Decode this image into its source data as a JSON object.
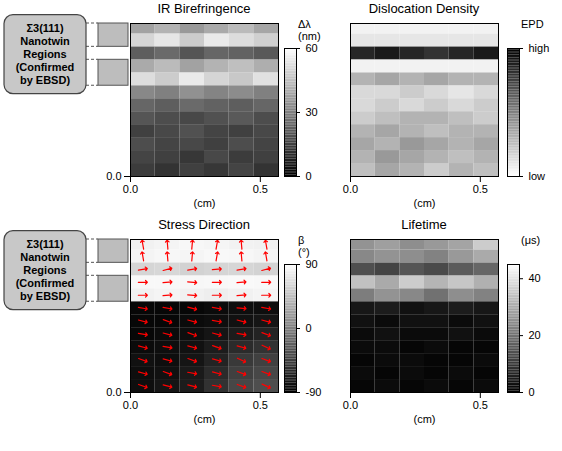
{
  "chart_data": [
    {
      "type": "heatmap",
      "title": "IR Birefringence",
      "x_label": "(cm)",
      "xlim": [
        0,
        0.57
      ],
      "xticks": [
        {
          "value": 0,
          "label": "0.0"
        },
        0.5
      ],
      "ylim": [
        0,
        0.59
      ],
      "yticks": [
        {
          "value": 0,
          "label": "0.0"
        }
      ],
      "annotations": [
        {
          "text": "Σ3(111) Nanotwin Regions (Confirmed by EBSD)",
          "y_ranges": [
            [
              0.5,
              0.59
            ],
            [
              0.35,
              0.45
            ]
          ]
        }
      ],
      "colorbar": {
        "label": "Δλ (nm)",
        "range": [
          0,
          60
        ],
        "ticks": [
          0,
          30,
          60
        ],
        "colors": [
          "#000000",
          "#ffffff"
        ]
      },
      "cells": {
        "x_edges": [
          0,
          0.095,
          0.19,
          0.285,
          0.38,
          0.475,
          0.57
        ],
        "y_edges": [
          0,
          0.05,
          0.1,
          0.15,
          0.2,
          0.25,
          0.3,
          0.35,
          0.4,
          0.45,
          0.5,
          0.55,
          0.59
        ],
        "values": [
          [
            14,
            12,
            15,
            13,
            16,
            12
          ],
          [
            16,
            15,
            13,
            17,
            14,
            15
          ],
          [
            18,
            16,
            17,
            15,
            18,
            16
          ],
          [
            15,
            17,
            19,
            16,
            15,
            17
          ],
          [
            20,
            18,
            17,
            19,
            21,
            18
          ],
          [
            24,
            22,
            25,
            23,
            22,
            24
          ],
          [
            32,
            30,
            34,
            31,
            33,
            30
          ],
          [
            52,
            48,
            55,
            50,
            47,
            53
          ],
          [
            40,
            44,
            38,
            42,
            45,
            41
          ],
          [
            22,
            25,
            20,
            24,
            23,
            21
          ],
          [
            50,
            54,
            48,
            55,
            52,
            49
          ],
          [
            38,
            42,
            36,
            40,
            44,
            39
          ]
        ]
      }
    },
    {
      "type": "heatmap",
      "title": "Dislocation Density",
      "x_label": "(cm)",
      "xlim": [
        0,
        0.57
      ],
      "xticks": [
        {
          "value": 0,
          "label": "0.0"
        },
        0.5
      ],
      "ylim": [
        0,
        0.59
      ],
      "tick_labels": "x",
      "colorbar": {
        "label": "EPD",
        "range": [
          0,
          1
        ],
        "ticks": [
          {
            "value": 0,
            "label": "low"
          },
          {
            "value": 1,
            "label": "high"
          }
        ],
        "colors": [
          "#ffffff",
          "#000000"
        ]
      },
      "cells": {
        "x_edges": [
          0,
          0.095,
          0.19,
          0.285,
          0.38,
          0.475,
          0.57
        ],
        "y_edges": [
          0,
          0.05,
          0.1,
          0.15,
          0.2,
          0.25,
          0.3,
          0.35,
          0.4,
          0.45,
          0.5,
          0.55,
          0.59
        ],
        "values": [
          [
            0.25,
            0.35,
            0.3,
            0.2,
            0.3,
            0.25
          ],
          [
            0.3,
            0.4,
            0.35,
            0.3,
            0.25,
            0.3
          ],
          [
            0.35,
            0.3,
            0.4,
            0.35,
            0.3,
            0.35
          ],
          [
            0.3,
            0.35,
            0.3,
            0.25,
            0.3,
            0.3
          ],
          [
            0.2,
            0.25,
            0.3,
            0.3,
            0.25,
            0.2
          ],
          [
            0.15,
            0.2,
            0.15,
            0.2,
            0.15,
            0.2
          ],
          [
            0.15,
            0.15,
            0.2,
            0.15,
            0.1,
            0.15
          ],
          [
            0.3,
            0.35,
            0.3,
            0.35,
            0.3,
            0.3
          ],
          [
            0.05,
            0.05,
            0.05,
            0.05,
            0.05,
            0.05
          ],
          [
            0.85,
            0.9,
            0.85,
            0.8,
            0.85,
            0.9
          ],
          [
            0.1,
            0.1,
            0.1,
            0.1,
            0.1,
            0.1
          ],
          [
            0.05,
            0.05,
            0.05,
            0.05,
            0.05,
            0.05
          ]
        ]
      }
    },
    {
      "type": "heatmap",
      "title": "Stress Direction",
      "x_label": "(cm)",
      "xlim": [
        0,
        0.57
      ],
      "xticks": [
        {
          "value": 0,
          "label": "0.0"
        },
        0.5
      ],
      "ylim": [
        0,
        0.59
      ],
      "yticks": [
        {
          "value": 0,
          "label": "0.0"
        }
      ],
      "annotations": [
        {
          "text": "Σ3(111) Nanotwin Regions (Confirmed by EBSD)",
          "y_ranges": [
            [
              0.5,
              0.59
            ],
            [
              0.35,
              0.45
            ]
          ]
        }
      ],
      "colorbar": {
        "label": "β (°)",
        "range": [
          -90,
          90
        ],
        "ticks": [
          -90,
          0,
          90
        ],
        "colors": [
          "#000000",
          "#ffffff"
        ]
      },
      "cells": {
        "x_edges": [
          0,
          0.095,
          0.19,
          0.285,
          0.38,
          0.475,
          0.57
        ],
        "y_edges": [
          0,
          0.05,
          0.1,
          0.15,
          0.2,
          0.25,
          0.3,
          0.35,
          0.4,
          0.45,
          0.5,
          0.55,
          0.59
        ],
        "values": [
          [
            -80,
            -75,
            -70,
            -55,
            -40,
            -35
          ],
          [
            -80,
            -78,
            -72,
            -60,
            -45,
            -40
          ],
          [
            -78,
            -80,
            -75,
            -65,
            -50,
            -45
          ],
          [
            -82,
            -80,
            -78,
            -70,
            -60,
            -55
          ],
          [
            -85,
            -82,
            -80,
            -75,
            -70,
            -65
          ],
          [
            -85,
            -85,
            -82,
            -80,
            -78,
            -75
          ],
          [
            -85,
            -85,
            -85,
            -82,
            -80,
            -80
          ],
          [
            80,
            82,
            80,
            78,
            80,
            82
          ],
          [
            85,
            85,
            84,
            85,
            86,
            85
          ],
          [
            60,
            62,
            58,
            60,
            61,
            59
          ],
          [
            82,
            84,
            83,
            85,
            84,
            82
          ],
          [
            80,
            82,
            84,
            83,
            81,
            80
          ]
        ]
      },
      "arrows": {
        "color": "#ff0000",
        "angles": [
          [
            -20,
            -15,
            -15,
            -10,
            -20,
            -25
          ],
          [
            -15,
            -20,
            -10,
            -15,
            -20,
            -20
          ],
          [
            -20,
            -15,
            -20,
            -15,
            -25,
            -20
          ],
          [
            -15,
            -10,
            -15,
            -20,
            -15,
            -25
          ],
          [
            -10,
            -15,
            -20,
            -15,
            -10,
            -20
          ],
          [
            -15,
            -20,
            -15,
            -10,
            -15,
            -15
          ],
          [
            -10,
            -10,
            -15,
            -10,
            -5,
            -10
          ],
          [
            0,
            5,
            -5,
            0,
            5,
            0
          ],
          [
            0,
            5,
            -5,
            0,
            5,
            0
          ],
          [
            10,
            15,
            10,
            5,
            10,
            15
          ],
          [
            100,
            95,
            85,
            80,
            95,
            100
          ],
          [
            100,
            95,
            85,
            80,
            95,
            100
          ]
        ]
      }
    },
    {
      "type": "heatmap",
      "title": "Lifetime",
      "x_label": "(cm)",
      "xlim": [
        0,
        0.57
      ],
      "xticks": [
        {
          "value": 0,
          "label": "0.0"
        },
        0.5
      ],
      "ylim": [
        0,
        0.59
      ],
      "tick_labels": "x",
      "colorbar": {
        "label": "(μs)",
        "range": [
          0,
          45
        ],
        "ticks": [
          0,
          20,
          40
        ],
        "colors": [
          "#000000",
          "#ffffff"
        ]
      },
      "cells": {
        "x_edges": [
          0,
          0.095,
          0.19,
          0.285,
          0.38,
          0.475,
          0.57
        ],
        "y_edges": [
          0,
          0.05,
          0.1,
          0.15,
          0.2,
          0.25,
          0.3,
          0.35,
          0.4,
          0.45,
          0.5,
          0.55,
          0.59
        ],
        "values": [
          [
            1,
            2,
            1,
            2,
            1,
            2
          ],
          [
            2,
            1,
            2,
            1,
            2,
            1
          ],
          [
            1,
            2,
            2,
            1,
            1,
            2
          ],
          [
            2,
            2,
            1,
            2,
            1,
            1
          ],
          [
            2,
            3,
            2,
            2,
            3,
            2
          ],
          [
            3,
            2,
            3,
            3,
            2,
            3
          ],
          [
            4,
            5,
            3,
            4,
            5,
            4
          ],
          [
            22,
            26,
            24,
            20,
            25,
            23
          ],
          [
            34,
            30,
            36,
            32,
            35,
            31
          ],
          [
            14,
            12,
            15,
            13,
            16,
            18
          ],
          [
            24,
            26,
            25,
            23,
            27,
            30
          ],
          [
            26,
            28,
            25,
            27,
            29,
            36
          ]
        ]
      }
    }
  ]
}
